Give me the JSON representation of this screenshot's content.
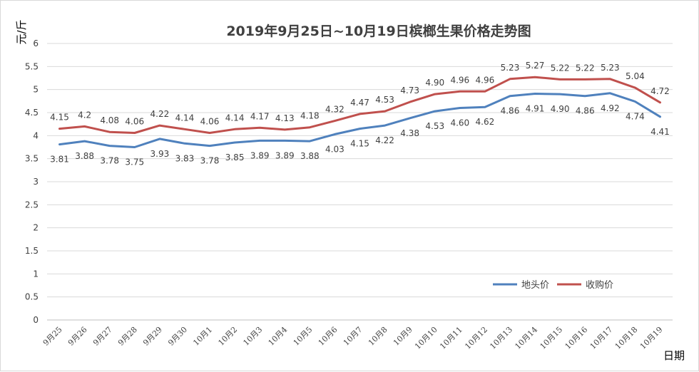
{
  "chart_data": {
    "type": "line",
    "title": "2019年9月25日~10月19日槟榔生果价格走势图",
    "ylabel": "元/斤",
    "xlabel": "日期",
    "ylim": [
      0,
      6
    ],
    "yticks": [
      "0",
      "0.5",
      "1",
      "1.5",
      "2",
      "2.5",
      "3",
      "3.5",
      "4",
      "4.5",
      "5",
      "5.5",
      "6"
    ],
    "grid": true,
    "legend_position": "bottom-right",
    "categories": [
      "9月25",
      "9月26",
      "9月27",
      "9月28",
      "9月29",
      "9月30",
      "10月1",
      "10月2",
      "10月3",
      "10月4",
      "10月5",
      "10月6",
      "10月7",
      "10月8",
      "10月9",
      "10月10",
      "10月11",
      "10月12",
      "10月13",
      "10月14",
      "10月15",
      "10月16",
      "10月17",
      "10月18",
      "10月19"
    ],
    "series": [
      {
        "name": "地头价",
        "color": "#4f81bd",
        "values": [
          3.81,
          3.88,
          3.78,
          3.75,
          3.93,
          3.83,
          3.78,
          3.85,
          3.89,
          3.89,
          3.88,
          4.03,
          4.15,
          4.22,
          4.38,
          4.53,
          4.6,
          4.62,
          4.86,
          4.91,
          4.9,
          4.86,
          4.92,
          4.74,
          4.41
        ],
        "labels": [
          "3.81",
          "3.88",
          "3.78",
          "3.75",
          "3.93",
          "3.83",
          "3.78",
          "3.85",
          "3.89",
          "3.89",
          "3.88",
          "4.03",
          "4.15",
          "4.22",
          "4.38",
          "4.53",
          "4.60",
          "4.62",
          "4.86",
          "4.91",
          "4.90",
          "4.86",
          "4.92",
          "4.74",
          "4.41"
        ]
      },
      {
        "name": "收购价",
        "color": "#c0504d",
        "values": [
          4.15,
          4.2,
          4.08,
          4.06,
          4.22,
          4.14,
          4.06,
          4.14,
          4.17,
          4.13,
          4.18,
          4.32,
          4.47,
          4.53,
          4.73,
          4.9,
          4.96,
          4.96,
          5.23,
          5.27,
          5.22,
          5.22,
          5.23,
          5.04,
          4.72
        ],
        "labels": [
          "4.15",
          "4.2",
          "4.08",
          "4.06",
          "4.22",
          "4.14",
          "4.06",
          "4.14",
          "4.17",
          "4.13",
          "4.18",
          "4.32",
          "4.47",
          "4.53",
          "4.73",
          "4.90",
          "4.96",
          "4.96",
          "5.23",
          "5.27",
          "5.22",
          "5.22",
          "5.23",
          "5.04",
          "4.72"
        ]
      }
    ]
  }
}
